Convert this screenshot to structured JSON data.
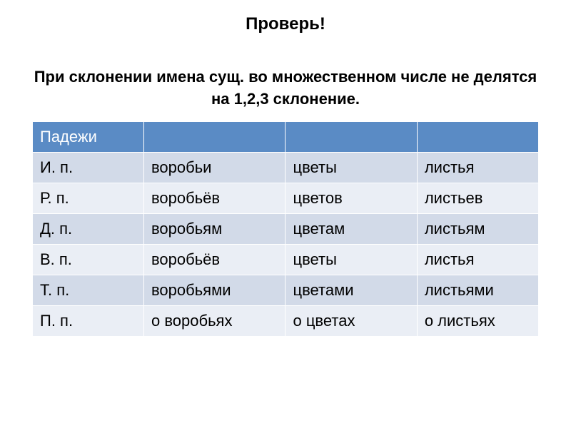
{
  "title": "Проверь!",
  "subtitle": "При склонении имена сущ. во множественном числе не делятся на 1,2,3 склонение.",
  "table": {
    "type": "table",
    "header_bg": "#5a8bc5",
    "header_color": "#ffffff",
    "row_odd_bg": "#d2dae8",
    "row_even_bg": "#eaeef5",
    "border_color": "#ffffff",
    "fontsize": 22,
    "columns": [
      "Падежи",
      "",
      "",
      ""
    ],
    "column_widths": [
      "22%",
      "28%",
      "26%",
      "24%"
    ],
    "rows": [
      [
        "И. п.",
        "воробьи",
        "цветы",
        "листья"
      ],
      [
        "Р. п.",
        "воробьёв",
        "цветов",
        "листьев"
      ],
      [
        "Д. п.",
        "воробьям",
        "цветам",
        "листьям"
      ],
      [
        "В. п.",
        "воробьёв",
        "цветы",
        "листья"
      ],
      [
        "Т. п.",
        "воробьями",
        "цветами",
        "листьями"
      ],
      [
        "П. п.",
        "о воробьях",
        "о цветах",
        "о листьях"
      ]
    ]
  }
}
